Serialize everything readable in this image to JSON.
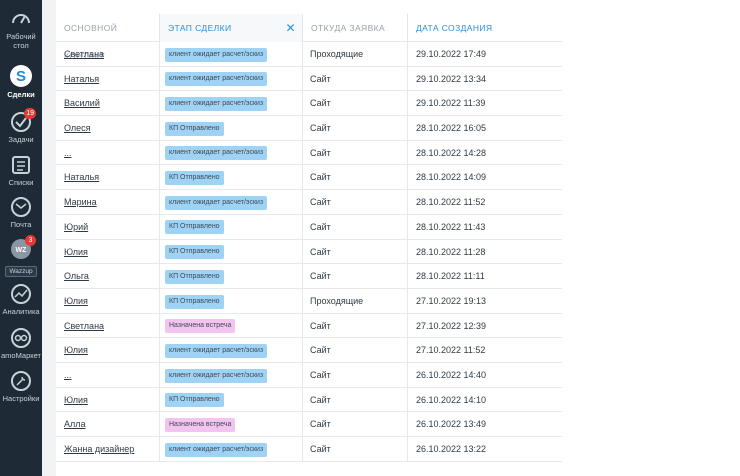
{
  "sidebar": {
    "items": [
      {
        "label": "Рабочий\nстол",
        "icon": "dashboard-gauge-icon"
      },
      {
        "label": "Сделки",
        "icon": "deals-dollar-icon",
        "active": true
      },
      {
        "label": "Задачи",
        "icon": "tasks-check-icon",
        "badge": "19"
      },
      {
        "label": "Списки",
        "icon": "lists-icon"
      },
      {
        "label": "Почта",
        "icon": "mail-icon"
      },
      {
        "label": "Wazzup",
        "icon": "wazzup-icon",
        "badge": "3",
        "logo_text": "WZ"
      },
      {
        "label": "Аналитика",
        "icon": "analytics-chart-icon"
      },
      {
        "label": "amoМаркет",
        "icon": "market-icon"
      },
      {
        "label": "Настройки",
        "icon": "settings-wrench-icon"
      }
    ]
  },
  "table": {
    "headers": {
      "contact": "ОСНОВНОЙ КОНТАКТ",
      "stage": "ЭТАП СДЕЛКИ",
      "source": "ОТКУДА ЗАЯВКА",
      "date": "ДАТА СОЗДАНИЯ"
    },
    "close_symbol": "✕",
    "rows": [
      {
        "contact": "Светлана",
        "stage": "клиент ожидает расчет/эскиз",
        "stage_color": "blue",
        "source": "Проходящие",
        "date": "29.10.2022 17:49"
      },
      {
        "contact": "Наталья",
        "stage": "клиент ожидает расчет/эскиз",
        "stage_color": "blue",
        "source": "Сайт",
        "date": "29.10.2022 13:34"
      },
      {
        "contact": "Василий",
        "stage": "клиент ожидает расчет/эскиз",
        "stage_color": "blue",
        "source": "Сайт",
        "date": "29.10.2022 11:39"
      },
      {
        "contact": "Олеся",
        "stage": "КП Отправлено",
        "stage_color": "blue",
        "source": "Сайт",
        "date": "28.10.2022 16:05"
      },
      {
        "contact": "...",
        "stage": "клиент ожидает расчет/эскиз",
        "stage_color": "blue",
        "source": "Сайт",
        "date": "28.10.2022 14:28"
      },
      {
        "contact": "Наталья",
        "stage": "КП Отправлено",
        "stage_color": "blue",
        "source": "Сайт",
        "date": "28.10.2022 14:09"
      },
      {
        "contact": "Марина",
        "stage": "клиент ожидает расчет/эскиз",
        "stage_color": "blue",
        "source": "Сайт",
        "date": "28.10.2022 11:52"
      },
      {
        "contact": "Юрий",
        "stage": "КП Отправлено",
        "stage_color": "blue",
        "source": "Сайт",
        "date": "28.10.2022 11:43"
      },
      {
        "contact": "Юлия",
        "stage": "КП Отправлено",
        "stage_color": "blue",
        "source": "Сайт",
        "date": "28.10.2022 11:28"
      },
      {
        "contact": "Ольга",
        "stage": "КП Отправлено",
        "stage_color": "blue",
        "source": "Сайт",
        "date": "28.10.2022 11:11"
      },
      {
        "contact": "Юлия",
        "stage": "КП Отправлено",
        "stage_color": "blue",
        "source": "Проходящие",
        "date": "27.10.2022 19:13"
      },
      {
        "contact": "Светлана",
        "stage": "Назначена встреча",
        "stage_color": "pink",
        "source": "Сайт",
        "date": "27.10.2022 12:39"
      },
      {
        "contact": "Юлия",
        "stage": "клиент ожидает расчет/эскиз",
        "stage_color": "blue",
        "source": "Сайт",
        "date": "27.10.2022 11:52"
      },
      {
        "contact": "...",
        "stage": "клиент ожидает расчет/эскиз",
        "stage_color": "blue",
        "source": "Сайт",
        "date": "26.10.2022 14:40"
      },
      {
        "contact": "Юлия",
        "stage": "КП Отправлено",
        "stage_color": "blue",
        "source": "Сайт",
        "date": "26.10.2022 14:10"
      },
      {
        "contact": "Алла",
        "stage": "Назначена встреча",
        "stage_color": "pink",
        "source": "Сайт",
        "date": "26.10.2022 13:49"
      },
      {
        "contact": "Жанна дизайнер",
        "stage": "клиент ожидает расчет/эскиз",
        "stage_color": "blue",
        "source": "Сайт",
        "date": "26.10.2022 13:22"
      }
    ]
  }
}
